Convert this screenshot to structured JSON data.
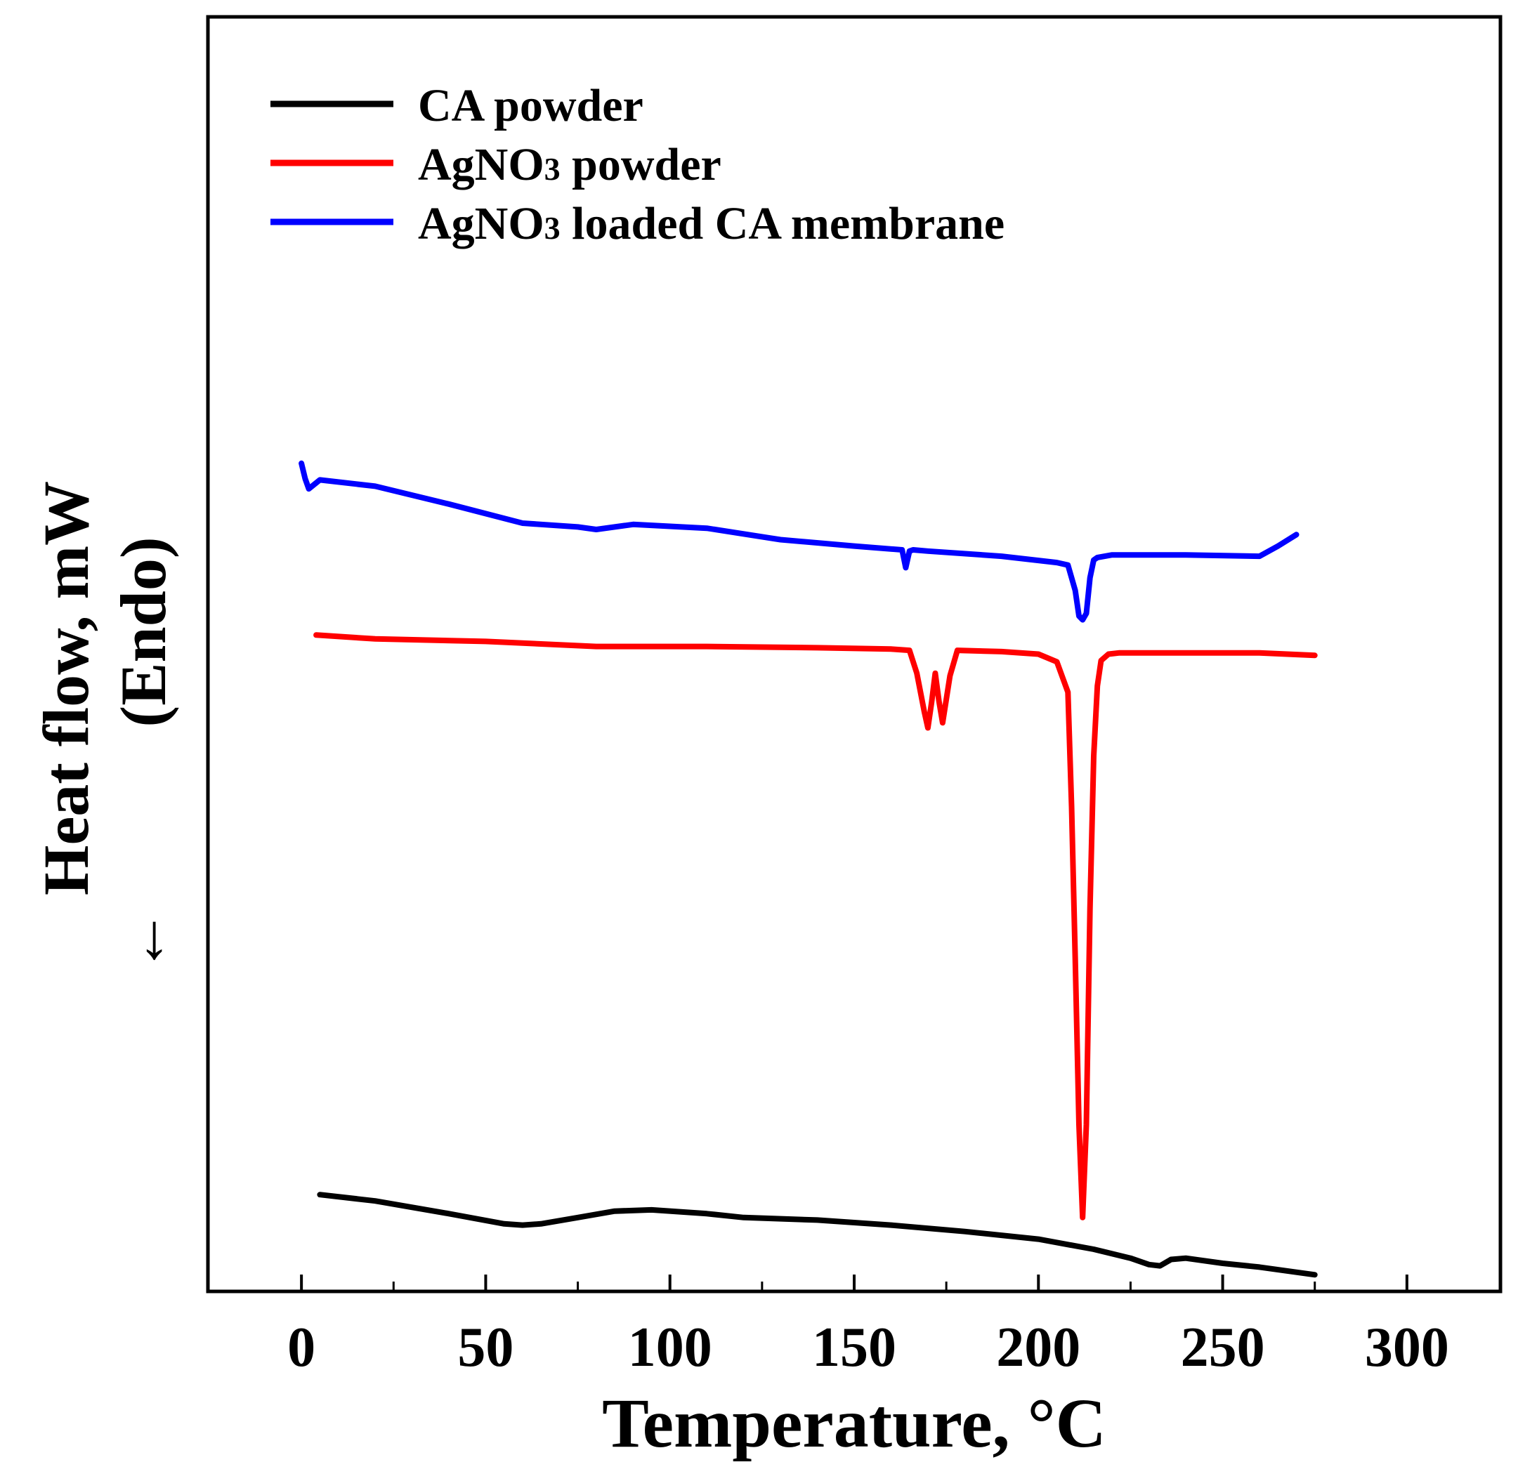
{
  "chart_data": {
    "type": "line",
    "xlabel": "Temperature, °C",
    "ylabel": "Heat flow, mW",
    "ylabel_note": "(Endo)",
    "ylabel_arrow": "←",
    "xlim": [
      -25,
      325
    ],
    "ylim": [
      0,
      100
    ],
    "x_ticks": [
      0,
      50,
      100,
      150,
      200,
      250,
      300
    ],
    "x_tick_labels": [
      "0",
      "50",
      "100",
      "150",
      "200",
      "250",
      "300"
    ],
    "y_tick_labels_shown": false,
    "legend": {
      "position": "top-left",
      "entries": [
        {
          "color": "#000000",
          "label_main": "CA powder",
          "label_sub": "",
          "label_rest": ""
        },
        {
          "color": "#ff0000",
          "label_main": "AgNO",
          "label_sub": "3",
          "label_rest": " powder"
        },
        {
          "color": "#0000ff",
          "label_main": "AgNO",
          "label_sub": "3",
          "label_rest": " loaded CA membrane"
        }
      ]
    },
    "series": [
      {
        "name": "CA powder",
        "color": "#000000",
        "x": [
          5,
          20,
          40,
          55,
          60,
          65,
          75,
          85,
          95,
          110,
          120,
          140,
          160,
          180,
          200,
          215,
          225,
          230,
          233,
          236,
          240,
          250,
          260,
          275
        ],
        "y": [
          7.5,
          7.0,
          6.0,
          5.2,
          5.1,
          5.2,
          5.7,
          6.2,
          6.3,
          6.0,
          5.7,
          5.5,
          5.1,
          4.6,
          4.0,
          3.2,
          2.5,
          2.0,
          1.9,
          2.4,
          2.5,
          2.1,
          1.8,
          1.2
        ]
      },
      {
        "name": "AgNO3 powder",
        "color": "#ff0000",
        "x": [
          4,
          20,
          50,
          80,
          110,
          140,
          160,
          165,
          167,
          169,
          170,
          171,
          172,
          173,
          174,
          176,
          178,
          190,
          200,
          205,
          208,
          209,
          210,
          211,
          212,
          213,
          214,
          215,
          216,
          217,
          219,
          222,
          240,
          260,
          275
        ],
        "y": [
          51.5,
          51.2,
          51.0,
          50.6,
          50.6,
          50.5,
          50.4,
          50.3,
          48.5,
          45.5,
          44.2,
          46.2,
          48.5,
          46.3,
          44.6,
          48.3,
          50.3,
          50.2,
          50.0,
          49.4,
          47.0,
          38.0,
          26.0,
          13.0,
          5.7,
          13.0,
          30.0,
          42.0,
          47.5,
          49.5,
          50.0,
          50.1,
          50.1,
          50.1,
          49.9
        ]
      },
      {
        "name": "AgNO3 loaded CA membrane",
        "color": "#0000ff",
        "x": [
          0,
          1,
          2,
          5,
          20,
          40,
          60,
          75,
          80,
          90,
          110,
          130,
          150,
          163,
          164,
          165,
          166,
          170,
          190,
          205,
          208,
          210,
          211,
          212,
          213,
          214,
          215,
          216,
          220,
          240,
          260,
          265,
          270
        ],
        "y": [
          65.0,
          63.8,
          63.0,
          63.7,
          63.2,
          61.8,
          60.3,
          60.0,
          59.8,
          60.2,
          59.9,
          59.0,
          58.5,
          58.2,
          56.8,
          58.1,
          58.2,
          58.1,
          57.7,
          57.2,
          57.0,
          55.0,
          53.0,
          52.7,
          53.2,
          56.0,
          57.4,
          57.6,
          57.8,
          57.8,
          57.7,
          58.5,
          59.4
        ]
      }
    ]
  }
}
